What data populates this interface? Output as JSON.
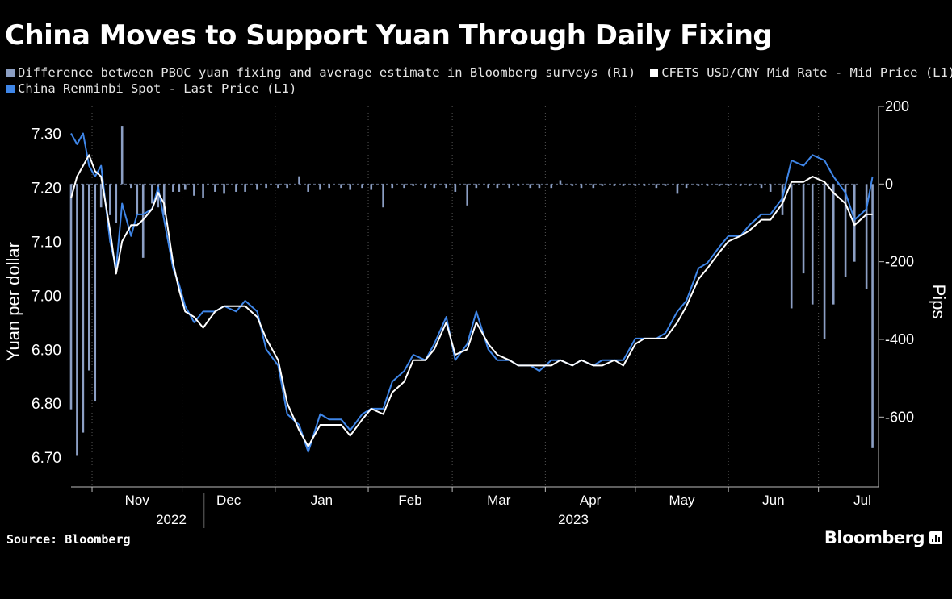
{
  "title": "China Moves to Support Yuan Through Daily Fixing",
  "legend": [
    {
      "label": "Difference between PBOC yuan fixing and average estimate in Bloomberg surveys (R1)",
      "color": "#8c9fc4"
    },
    {
      "label": "CFETS USD/CNY Mid Rate - Mid Price (L1)",
      "color": "#ffffff"
    },
    {
      "label": "China Renminbi Spot - Last Price (L1)",
      "color": "#3f86e8"
    }
  ],
  "source": "Source: Bloomberg",
  "brand": "Bloomberg",
  "brand_icon": "bloomberg-terminal-icon",
  "chart_data": {
    "type": "line+bar",
    "y_left": {
      "label": "Yuan per dollar",
      "ticks": [
        "7.30",
        "7.20",
        "7.10",
        "7.00",
        "6.90",
        "6.80",
        "6.70"
      ],
      "range": [
        6.645,
        7.35
      ]
    },
    "y_right": {
      "label": "Pips",
      "ticks": [
        "200",
        "0",
        "-200",
        "-400",
        "-600"
      ],
      "range": [
        -780,
        200
      ]
    },
    "x_months": [
      "Nov",
      "Dec",
      "Jan",
      "Feb",
      "Mar",
      "Apr",
      "May",
      "Jun",
      "Jul"
    ],
    "x_years": [
      "2022",
      "2023"
    ],
    "x_range": [
      "2022-10-25",
      "2023-07-21"
    ],
    "month_starts": [
      "2022-11-01",
      "2022-12-01",
      "2023-01-01",
      "2023-02-01",
      "2023-03-01",
      "2023-04-01",
      "2023-05-01",
      "2023-06-01",
      "2023-07-01"
    ],
    "series": [
      {
        "name": "China Renminbi Spot - Last Price (L1)",
        "color": "#3f86e8",
        "x": [
          "2022-10-25",
          "2022-10-27",
          "2022-10-29",
          "2022-10-31",
          "2022-11-02",
          "2022-11-04",
          "2022-11-07",
          "2022-11-09",
          "2022-11-11",
          "2022-11-14",
          "2022-11-16",
          "2022-11-18",
          "2022-11-21",
          "2022-11-23",
          "2022-11-25",
          "2022-11-28",
          "2022-11-30",
          "2022-12-02",
          "2022-12-05",
          "2022-12-08",
          "2022-12-12",
          "2022-12-15",
          "2022-12-19",
          "2022-12-22",
          "2022-12-26",
          "2022-12-29",
          "2023-01-02",
          "2023-01-05",
          "2023-01-09",
          "2023-01-12",
          "2023-01-16",
          "2023-01-19",
          "2023-01-23",
          "2023-01-26",
          "2023-01-30",
          "2023-02-02",
          "2023-02-06",
          "2023-02-09",
          "2023-02-13",
          "2023-02-16",
          "2023-02-20",
          "2023-02-23",
          "2023-02-27",
          "2023-03-02",
          "2023-03-06",
          "2023-03-09",
          "2023-03-13",
          "2023-03-16",
          "2023-03-20",
          "2023-03-23",
          "2023-03-27",
          "2023-03-30",
          "2023-04-03",
          "2023-04-06",
          "2023-04-10",
          "2023-04-13",
          "2023-04-17",
          "2023-04-20",
          "2023-04-24",
          "2023-04-27",
          "2023-05-01",
          "2023-05-04",
          "2023-05-08",
          "2023-05-11",
          "2023-05-15",
          "2023-05-18",
          "2023-05-22",
          "2023-05-25",
          "2023-05-29",
          "2023-06-01",
          "2023-06-05",
          "2023-06-08",
          "2023-06-12",
          "2023-06-15",
          "2023-06-19",
          "2023-06-22",
          "2023-06-26",
          "2023-06-29",
          "2023-07-03",
          "2023-07-06",
          "2023-07-10",
          "2023-07-13",
          "2023-07-17",
          "2023-07-19"
        ],
        "values": [
          7.3,
          7.28,
          7.3,
          7.24,
          7.22,
          7.24,
          7.1,
          7.05,
          7.17,
          7.11,
          7.15,
          7.15,
          7.16,
          7.2,
          7.14,
          7.05,
          7.02,
          6.98,
          6.95,
          6.97,
          6.97,
          6.98,
          6.97,
          6.99,
          6.97,
          6.9,
          6.87,
          6.78,
          6.76,
          6.71,
          6.78,
          6.77,
          6.77,
          6.75,
          6.78,
          6.79,
          6.79,
          6.84,
          6.86,
          6.89,
          6.88,
          6.91,
          6.96,
          6.88,
          6.91,
          6.97,
          6.9,
          6.88,
          6.88,
          6.87,
          6.87,
          6.86,
          6.88,
          6.88,
          6.87,
          6.88,
          6.87,
          6.88,
          6.88,
          6.88,
          6.92,
          6.92,
          6.92,
          6.93,
          6.97,
          6.99,
          7.05,
          7.06,
          7.09,
          7.11,
          7.11,
          7.13,
          7.15,
          7.15,
          7.18,
          7.25,
          7.24,
          7.26,
          7.25,
          7.22,
          7.19,
          7.14,
          7.16,
          7.22
        ]
      },
      {
        "name": "CFETS USD/CNY Mid Rate - Mid Price (L1)",
        "color": "#ffffff",
        "x": [
          "2022-10-25",
          "2022-10-27",
          "2022-10-29",
          "2022-10-31",
          "2022-11-02",
          "2022-11-04",
          "2022-11-07",
          "2022-11-09",
          "2022-11-11",
          "2022-11-14",
          "2022-11-16",
          "2022-11-18",
          "2022-11-21",
          "2022-11-23",
          "2022-11-25",
          "2022-11-28",
          "2022-11-30",
          "2022-12-02",
          "2022-12-05",
          "2022-12-08",
          "2022-12-12",
          "2022-12-15",
          "2022-12-19",
          "2022-12-22",
          "2022-12-26",
          "2022-12-29",
          "2023-01-02",
          "2023-01-05",
          "2023-01-09",
          "2023-01-12",
          "2023-01-16",
          "2023-01-19",
          "2023-01-23",
          "2023-01-26",
          "2023-01-30",
          "2023-02-02",
          "2023-02-06",
          "2023-02-09",
          "2023-02-13",
          "2023-02-16",
          "2023-02-20",
          "2023-02-23",
          "2023-02-27",
          "2023-03-02",
          "2023-03-06",
          "2023-03-09",
          "2023-03-13",
          "2023-03-16",
          "2023-03-20",
          "2023-03-23",
          "2023-03-27",
          "2023-03-30",
          "2023-04-03",
          "2023-04-06",
          "2023-04-10",
          "2023-04-13",
          "2023-04-17",
          "2023-04-20",
          "2023-04-24",
          "2023-04-27",
          "2023-05-01",
          "2023-05-04",
          "2023-05-08",
          "2023-05-11",
          "2023-05-15",
          "2023-05-18",
          "2023-05-22",
          "2023-05-25",
          "2023-05-29",
          "2023-06-01",
          "2023-06-05",
          "2023-06-08",
          "2023-06-12",
          "2023-06-15",
          "2023-06-19",
          "2023-06-22",
          "2023-06-26",
          "2023-06-29",
          "2023-07-03",
          "2023-07-06",
          "2023-07-10",
          "2023-07-13",
          "2023-07-17",
          "2023-07-19"
        ],
        "values": [
          7.18,
          7.22,
          7.24,
          7.26,
          7.23,
          7.22,
          7.12,
          7.04,
          7.1,
          7.13,
          7.13,
          7.14,
          7.16,
          7.19,
          7.17,
          7.06,
          7.01,
          6.97,
          6.96,
          6.94,
          6.97,
          6.98,
          6.98,
          6.98,
          6.96,
          6.92,
          6.88,
          6.8,
          6.75,
          6.72,
          6.76,
          6.76,
          6.76,
          6.74,
          6.77,
          6.79,
          6.78,
          6.82,
          6.84,
          6.88,
          6.88,
          6.9,
          6.95,
          6.89,
          6.9,
          6.95,
          6.91,
          6.89,
          6.88,
          6.87,
          6.87,
          6.87,
          6.87,
          6.88,
          6.87,
          6.88,
          6.87,
          6.87,
          6.88,
          6.87,
          6.91,
          6.92,
          6.92,
          6.92,
          6.95,
          6.98,
          7.03,
          7.05,
          7.08,
          7.1,
          7.11,
          7.12,
          7.14,
          7.14,
          7.17,
          7.21,
          7.21,
          7.22,
          7.21,
          7.19,
          7.17,
          7.13,
          7.15,
          7.15
        ]
      },
      {
        "name": "Difference between PBOC yuan fixing and average estimate in Bloomberg surveys (R1)",
        "color": "#8c9fc4",
        "x": [
          "2022-10-25",
          "2022-10-27",
          "2022-10-29",
          "2022-10-31",
          "2022-11-02",
          "2022-11-04",
          "2022-11-07",
          "2022-11-09",
          "2022-11-11",
          "2022-11-14",
          "2022-11-16",
          "2022-11-18",
          "2022-11-21",
          "2022-11-23",
          "2022-11-25",
          "2022-11-28",
          "2022-11-30",
          "2022-12-02",
          "2022-12-05",
          "2022-12-08",
          "2022-12-12",
          "2022-12-15",
          "2022-12-19",
          "2022-12-22",
          "2022-12-26",
          "2022-12-29",
          "2023-01-02",
          "2023-01-05",
          "2023-01-09",
          "2023-01-12",
          "2023-01-16",
          "2023-01-19",
          "2023-01-23",
          "2023-01-26",
          "2023-01-30",
          "2023-02-02",
          "2023-02-06",
          "2023-02-09",
          "2023-02-13",
          "2023-02-16",
          "2023-02-20",
          "2023-02-23",
          "2023-02-27",
          "2023-03-02",
          "2023-03-06",
          "2023-03-09",
          "2023-03-13",
          "2023-03-16",
          "2023-03-20",
          "2023-03-23",
          "2023-03-27",
          "2023-03-30",
          "2023-04-03",
          "2023-04-06",
          "2023-04-10",
          "2023-04-13",
          "2023-04-17",
          "2023-04-20",
          "2023-04-24",
          "2023-04-27",
          "2023-05-01",
          "2023-05-04",
          "2023-05-08",
          "2023-05-11",
          "2023-05-15",
          "2023-05-18",
          "2023-05-22",
          "2023-05-25",
          "2023-05-29",
          "2023-06-01",
          "2023-06-05",
          "2023-06-08",
          "2023-06-12",
          "2023-06-15",
          "2023-06-19",
          "2023-06-22",
          "2023-06-26",
          "2023-06-29",
          "2023-07-03",
          "2023-07-06",
          "2023-07-10",
          "2023-07-13",
          "2023-07-17",
          "2023-07-19"
        ],
        "values": [
          -580,
          -700,
          -640,
          -480,
          -560,
          -60,
          -80,
          -100,
          150,
          -10,
          -80,
          -190,
          -50,
          -60,
          -80,
          -20,
          -20,
          -15,
          -30,
          -35,
          -20,
          -25,
          -20,
          -20,
          -15,
          -10,
          -10,
          -10,
          20,
          -20,
          -15,
          -10,
          -10,
          -15,
          -10,
          -15,
          -60,
          -10,
          -10,
          -5,
          -10,
          -10,
          -10,
          -20,
          -55,
          -10,
          -10,
          -10,
          -10,
          -5,
          -10,
          -10,
          -10,
          10,
          -5,
          -10,
          -10,
          -5,
          -5,
          -5,
          -5,
          -5,
          -10,
          -5,
          -25,
          -10,
          -5,
          -5,
          -5,
          -5,
          -5,
          -5,
          -10,
          -20,
          -80,
          -320,
          -230,
          -310,
          -400,
          -310,
          -240,
          -200,
          -270,
          -680
        ]
      }
    ]
  }
}
